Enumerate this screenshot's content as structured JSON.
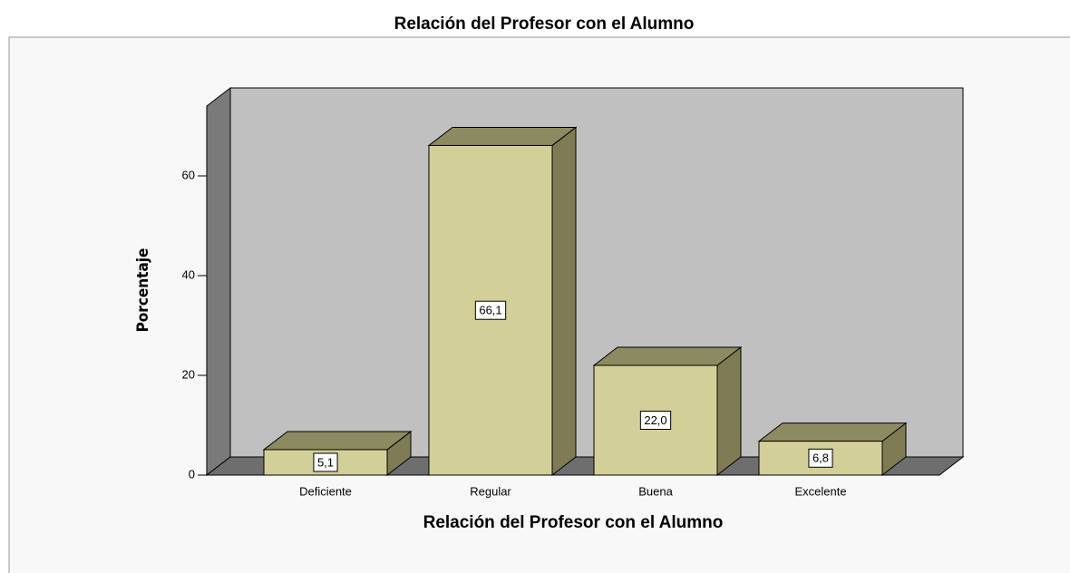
{
  "chart_data": {
    "type": "bar3d",
    "title": "Relación del Profesor con el Alumno",
    "x_label": "Relación del Profesor con el Alumno",
    "y_label": "Porcentaje",
    "categories": [
      "Deficiente",
      "Regular",
      "Buena",
      "Excelente"
    ],
    "values": [
      5.1,
      66.1,
      22.0,
      6.8
    ],
    "value_labels": [
      "5,1",
      "66,1",
      "22,0",
      "6,8"
    ],
    "color": "#d3cf98",
    "ylim": [
      0,
      74
    ],
    "yticks": [
      0,
      20,
      40,
      60
    ],
    "grid": false
  }
}
